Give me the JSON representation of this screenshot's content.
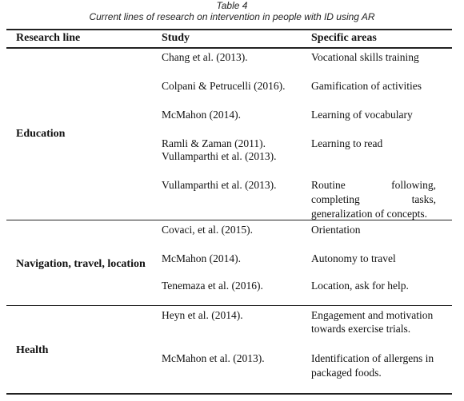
{
  "caption": {
    "title": "Table 4",
    "description": "Current lines of research on intervention in people with ID using AR"
  },
  "headers": {
    "research_line": "Research line",
    "study": "Study",
    "areas": "Specific areas"
  },
  "sections": {
    "education": {
      "label": "Education",
      "rows": [
        {
          "study": "Chang et al. (2013).",
          "area": "Vocational skills training"
        },
        {
          "study": "Colpani & Petrucelli (2016).",
          "area": "Gamification of activities"
        },
        {
          "study": "McMahon (2014).",
          "area": "Learning of vocabulary"
        },
        {
          "study_1": "Ramli & Zaman (2011).",
          "study_2": "Vullamparthi et al. (2013).",
          "area": "Learning to read"
        },
        {
          "study": "Vullamparthi et al. (2013).",
          "area_1a": "Routine",
          "area_1b": "following,",
          "area_2a": "completing",
          "area_2b": "tasks,",
          "area_3": "generalization of concepts."
        }
      ]
    },
    "navigation": {
      "label": "Navigation, travel, location",
      "rows": [
        {
          "study": "Covaci, et al. (2015).",
          "area": "Orientation"
        },
        {
          "study": "McMahon (2014).",
          "area": "Autonomy to travel"
        },
        {
          "study": "Tenemaza et al. (2016).",
          "area": "Location, ask for help."
        }
      ]
    },
    "health": {
      "label": "Health",
      "rows": [
        {
          "study": "Heyn et al. (2014).",
          "area_1": "Engagement and motivation",
          "area_2": "towards exercise trials."
        },
        {
          "study": "McMahon et al. (2013).",
          "area_1": "Identification of allergens in",
          "area_2": "packaged foods."
        }
      ]
    }
  }
}
